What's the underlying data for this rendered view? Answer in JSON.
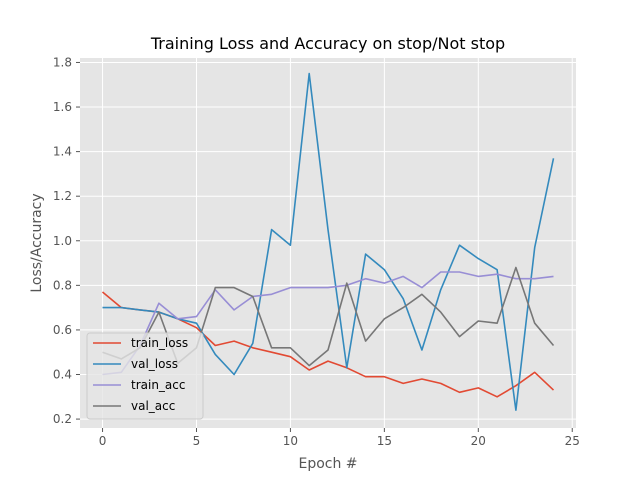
{
  "chart_data": {
    "type": "line",
    "title": "Training Loss and Accuracy on stop/Not stop",
    "xlabel": "Epoch #",
    "ylabel": "Loss/Accuracy",
    "xlim": [
      -1.2,
      25.2
    ],
    "ylim": [
      0.16,
      1.82
    ],
    "xticks": [
      0,
      5,
      10,
      15,
      20,
      25
    ],
    "xtick_labels": [
      "0",
      "5",
      "10",
      "15",
      "20",
      "25"
    ],
    "yticks": [
      0.2,
      0.4,
      0.6,
      0.8,
      1.0,
      1.2,
      1.4,
      1.6,
      1.8
    ],
    "ytick_labels": [
      "0.2",
      "0.4",
      "0.6",
      "0.8",
      "1.0",
      "1.2",
      "1.4",
      "1.6",
      "1.8"
    ],
    "grid": true,
    "legend_position": "lower-left",
    "background": "#e5e5e5",
    "x": [
      0,
      1,
      2,
      3,
      4,
      5,
      6,
      7,
      8,
      9,
      10,
      11,
      12,
      13,
      14,
      15,
      16,
      17,
      18,
      19,
      20,
      21,
      22,
      23,
      24
    ],
    "series": [
      {
        "name": "train_loss",
        "color": "#e24a33",
        "values": [
          0.77,
          0.7,
          0.69,
          0.68,
          0.65,
          0.61,
          0.53,
          0.55,
          0.52,
          0.5,
          0.48,
          0.42,
          0.46,
          0.43,
          0.39,
          0.39,
          0.36,
          0.38,
          0.36,
          0.32,
          0.34,
          0.3,
          0.35,
          0.41,
          0.33
        ]
      },
      {
        "name": "val_loss",
        "color": "#348abd",
        "values": [
          0.7,
          0.7,
          0.69,
          0.68,
          0.65,
          0.63,
          0.49,
          0.4,
          0.54,
          1.05,
          0.98,
          1.75,
          1.05,
          0.43,
          0.94,
          0.87,
          0.74,
          0.51,
          0.78,
          0.98,
          0.92,
          0.87,
          0.24,
          0.97,
          1.37
        ]
      },
      {
        "name": "train_acc",
        "color": "#988ed5",
        "values": [
          0.4,
          0.41,
          0.53,
          0.72,
          0.65,
          0.66,
          0.78,
          0.69,
          0.75,
          0.76,
          0.79,
          0.79,
          0.79,
          0.8,
          0.83,
          0.81,
          0.84,
          0.79,
          0.86,
          0.86,
          0.84,
          0.85,
          0.83,
          0.83,
          0.84
        ]
      },
      {
        "name": "val_acc",
        "color": "#777777",
        "values": [
          0.5,
          0.47,
          0.52,
          0.68,
          0.45,
          0.52,
          0.79,
          0.79,
          0.75,
          0.52,
          0.52,
          0.44,
          0.51,
          0.81,
          0.55,
          0.65,
          0.7,
          0.76,
          0.68,
          0.57,
          0.64,
          0.63,
          0.88,
          0.63,
          0.53
        ]
      }
    ]
  }
}
